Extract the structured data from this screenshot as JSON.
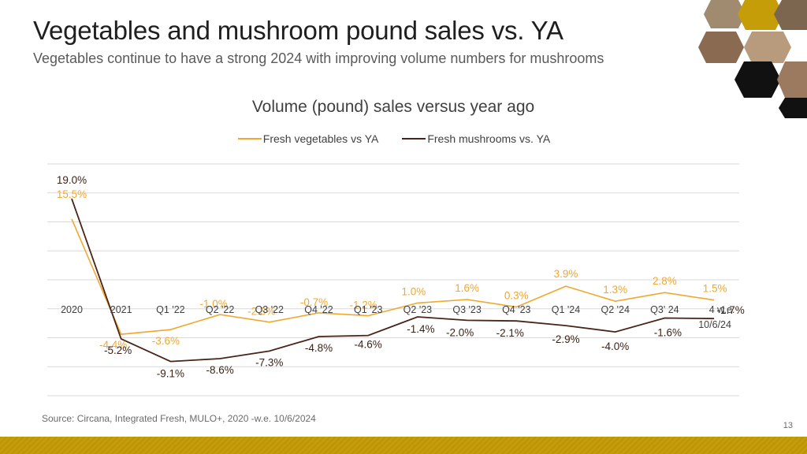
{
  "slide": {
    "title": "Vegetables and mushroom pound sales vs. YA",
    "subtitle": "Vegetables continue to have a strong 2024 with improving volume numbers for mushrooms",
    "source": "Source: Circana, Integrated Fresh, MULO+, 2020 -w.e. 10/6/2024",
    "page_number": "13"
  },
  "colors": {
    "vegetables": "#f0a830",
    "mushrooms": "#4a2418",
    "gridline": "#d9d9d9",
    "footer": "#c59d08",
    "hex_dark": "#111111",
    "hex_gold": "#c59d08"
  },
  "chart_data": {
    "type": "line",
    "title": "Volume (pound) sales versus year ago",
    "categories": [
      "2020",
      "2021",
      "Q1 '22",
      "Q2 '22",
      "Q3 '22",
      "Q4 '22",
      "Q1 '23",
      "Q2 '23",
      "Q3 '23",
      "Q4 '23",
      "Q1 '24",
      "Q2 '24",
      "Q3' 24",
      "4 w.e. 10/6/24"
    ],
    "series": [
      {
        "name": "Fresh vegetables vs YA",
        "values": [
          15.5,
          -4.4,
          -3.6,
          -1.0,
          -2.3,
          -0.7,
          -1.2,
          1.0,
          1.6,
          0.3,
          3.9,
          1.3,
          2.8,
          1.5
        ],
        "labels": [
          "15.5%",
          "-4.4%",
          "-3.6%",
          "-1.0%",
          "-2.3%",
          "-0.7%",
          "-1.2%",
          "1.0%",
          "1.6%",
          "0.3%",
          "3.9%",
          "1.3%",
          "2.8%",
          "1.5%"
        ]
      },
      {
        "name": "Fresh mushrooms vs. YA",
        "values": [
          19.0,
          -5.2,
          -9.1,
          -8.6,
          -7.3,
          -4.8,
          -4.6,
          -1.4,
          -2.0,
          -2.1,
          -2.9,
          -4.0,
          -1.6,
          -1.7
        ],
        "labels": [
          "19.0%",
          "-5.2%",
          "-9.1%",
          "-8.6%",
          "-7.3%",
          "-4.8%",
          "-4.6%",
          "-1.4%",
          "-2.0%",
          "-2.1%",
          "-2.9%",
          "-4.0%",
          "-1.6%",
          "-1.7%"
        ]
      }
    ],
    "ylim": [
      -15,
      25
    ],
    "grid": true,
    "legend": "top"
  }
}
